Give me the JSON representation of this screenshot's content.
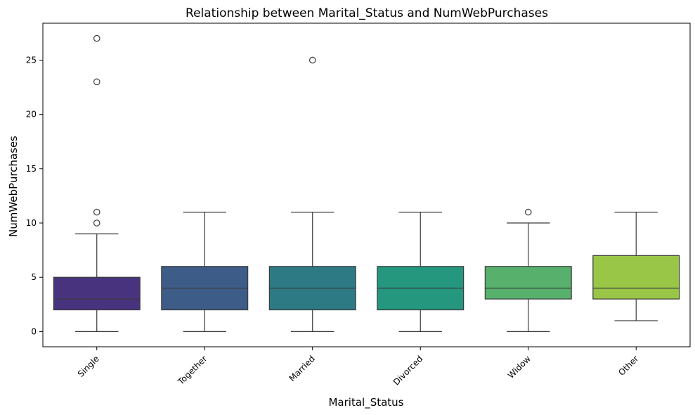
{
  "chart_data": {
    "type": "box",
    "title": "Relationship between Marital_Status and NumWebPurchases",
    "xlabel": "Marital_Status",
    "ylabel": "NumWebPurchases",
    "ylim": [
      -1.4,
      28.4
    ],
    "yticks": [
      0,
      5,
      10,
      15,
      20,
      25
    ],
    "categories": [
      "Single",
      "Together",
      "Married",
      "Divorced",
      "Widow",
      "Other"
    ],
    "boxes": [
      {
        "category": "Single",
        "whisker_low": 0,
        "q1": 2,
        "median": 3,
        "q3": 5,
        "whisker_high": 9,
        "outliers": [
          10,
          11,
          23,
          27
        ],
        "color": "#48347e"
      },
      {
        "category": "Together",
        "whisker_low": 0,
        "q1": 2,
        "median": 4,
        "q3": 6,
        "whisker_high": 11,
        "outliers": [],
        "color": "#3d5c88"
      },
      {
        "category": "Married",
        "whisker_low": 0,
        "q1": 2,
        "median": 4,
        "q3": 6,
        "whisker_high": 11,
        "outliers": [
          25
        ],
        "color": "#2e7a84"
      },
      {
        "category": "Divorced",
        "whisker_low": 0,
        "q1": 2,
        "median": 4,
        "q3": 6,
        "whisker_high": 11,
        "outliers": [],
        "color": "#24977e"
      },
      {
        "category": "Widow",
        "whisker_low": 0,
        "q1": 3,
        "median": 4,
        "q3": 6,
        "whisker_high": 10,
        "outliers": [
          11
        ],
        "color": "#57b16d"
      },
      {
        "category": "Other",
        "whisker_low": 1,
        "q1": 3,
        "median": 4,
        "q3": 7,
        "whisker_high": 11,
        "outliers": [],
        "color": "#9ac648"
      }
    ],
    "grid": false,
    "legend": "none"
  }
}
